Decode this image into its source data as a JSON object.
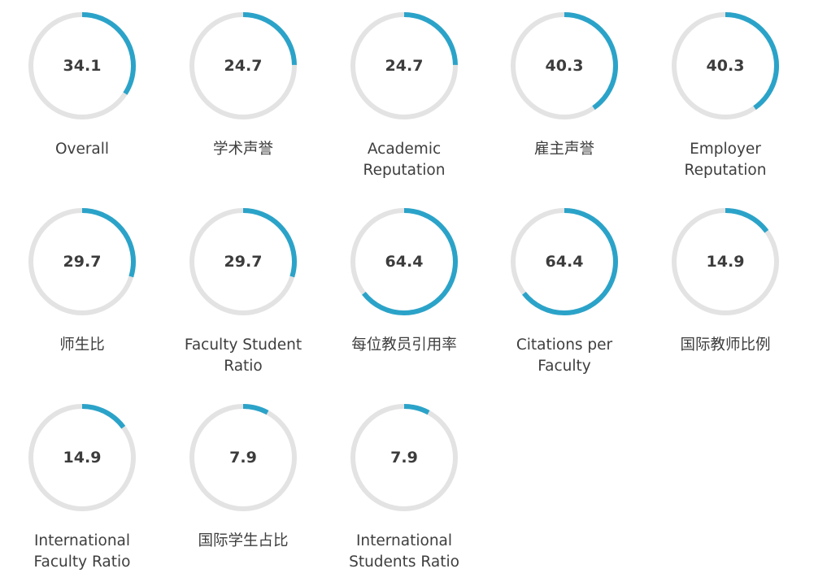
{
  "colors": {
    "track": "#e3e3e3",
    "arc": "#2ba3c9",
    "text": "#3e3e3e"
  },
  "metrics": [
    {
      "value": "34.1",
      "label": "Overall"
    },
    {
      "value": "24.7",
      "label": "学术声誉"
    },
    {
      "value": "24.7",
      "label": "Academic Reputation"
    },
    {
      "value": "40.3",
      "label": "雇主声誉"
    },
    {
      "value": "40.3",
      "label": "Employer Reputation"
    },
    {
      "value": "29.7",
      "label": "师生比"
    },
    {
      "value": "29.7",
      "label": "Faculty Student Ratio"
    },
    {
      "value": "64.4",
      "label": "每位教员引用率"
    },
    {
      "value": "64.4",
      "label": "Citations per Faculty"
    },
    {
      "value": "14.9",
      "label": "国际教师比例"
    },
    {
      "value": "14.9",
      "label": "International Faculty Ratio"
    },
    {
      "value": "7.9",
      "label": "国际学生占比"
    },
    {
      "value": "7.9",
      "label": "International Students Ratio"
    }
  ]
}
